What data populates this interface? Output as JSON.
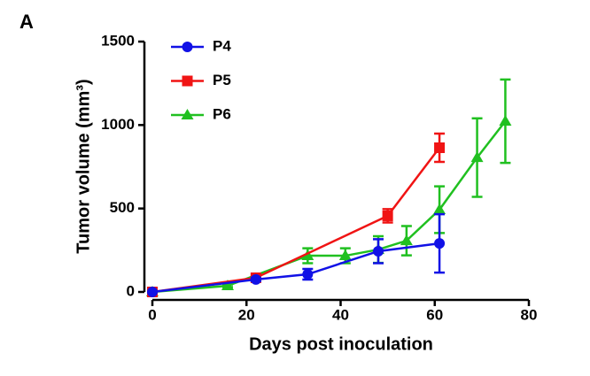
{
  "chart_data": {
    "type": "line",
    "panel_label": "A",
    "xlabel": "Days post inoculation",
    "ylabel": "Tumor volume (mm³)",
    "xlim": [
      0,
      80
    ],
    "xticks": [
      0,
      20,
      40,
      60,
      80
    ],
    "ylim": [
      0,
      1500
    ],
    "yticks": [
      0,
      500,
      1000,
      1500
    ],
    "legend": "upper left",
    "series": [
      {
        "name": "P4",
        "color": "#1111e6",
        "marker": "circle",
        "x": [
          0,
          22,
          33,
          48,
          61
        ],
        "values": [
          0,
          75,
          106,
          244,
          291
        ],
        "errors": [
          0,
          10,
          32,
          72,
          175
        ]
      },
      {
        "name": "P5",
        "color": "#f01414",
        "marker": "square",
        "x": [
          0,
          22,
          50,
          61
        ],
        "values": [
          0,
          85,
          456,
          864
        ],
        "errors": [
          0,
          10,
          40,
          85
        ]
      },
      {
        "name": "P6",
        "color": "#20c020",
        "marker": "triangle",
        "x": [
          0,
          16,
          33,
          41,
          48,
          54,
          61,
          69,
          75
        ],
        "values": [
          0,
          37,
          217,
          217,
          254,
          307,
          493,
          805,
          1023
        ],
        "errors": [
          0,
          8,
          45,
          45,
          80,
          88,
          140,
          235,
          250
        ]
      }
    ]
  }
}
